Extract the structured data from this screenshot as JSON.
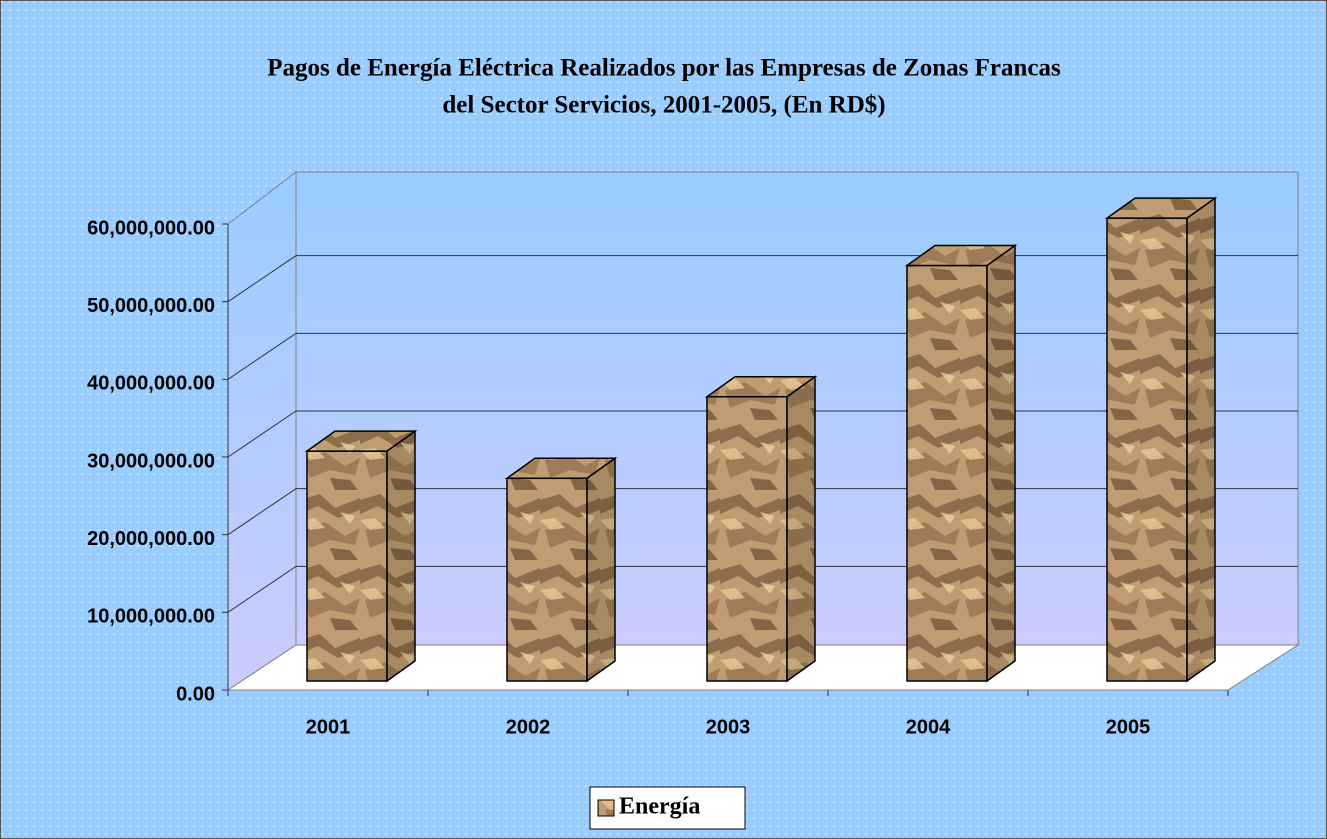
{
  "chart_data": {
    "type": "bar3d",
    "title": [
      "Pagos de Energía Eléctrica Realizados por las Empresas de Zonas Francas",
      "del Sector Servicios, 2001-2005, (En RD$)"
    ],
    "categories": [
      "2001",
      "2002",
      "2003",
      "2004",
      "2005"
    ],
    "series": [
      {
        "name": "Energía",
        "color": "#b8936a",
        "values": [
          29600000,
          26100000,
          36600000,
          53500000,
          59600000
        ]
      }
    ],
    "ylim": [
      0,
      60000000
    ],
    "yticks": [
      {
        "value": 0,
        "label": "0.00"
      },
      {
        "value": 10000000,
        "label": "10,000,000.00"
      },
      {
        "value": 20000000,
        "label": "20,000,000.00"
      },
      {
        "value": 30000000,
        "label": "30,000,000.00"
      },
      {
        "value": 40000000,
        "label": "40,000,000.00"
      },
      {
        "value": 50000000,
        "label": "50,000,000.00"
      },
      {
        "value": 60000000,
        "label": "60,000,000.00"
      }
    ],
    "grid": true,
    "legend": "bottom"
  }
}
